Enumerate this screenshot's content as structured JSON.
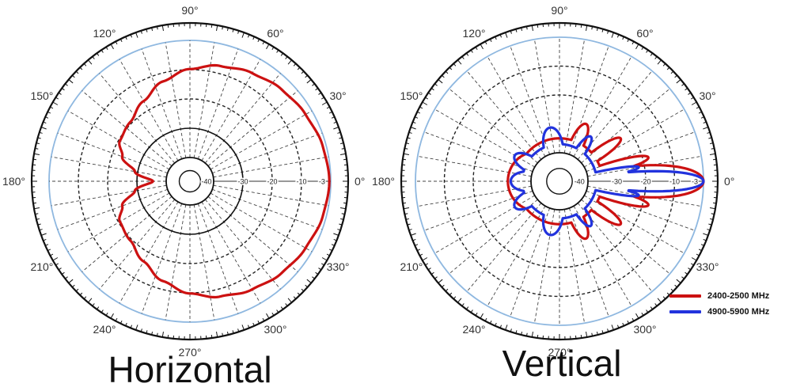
{
  "chart_data": [
    {
      "type": "polar-line",
      "title": "Horizontal",
      "angle_labels": [
        "0°",
        "30°",
        "60°",
        "90°",
        "120°",
        "150°",
        "180°",
        "210°",
        "240°",
        "270°",
        "300°",
        "330°"
      ],
      "radial_labels": [
        "-3",
        "-10",
        "-20",
        "-30",
        "-40"
      ],
      "series": [
        {
          "color": "#cc1111",
          "angles": [
            0,
            15,
            30,
            45,
            60,
            75,
            90,
            105,
            120,
            135,
            150,
            160,
            170,
            180,
            190,
            200,
            210,
            225,
            240,
            255,
            270,
            285,
            300,
            315,
            330,
            345,
            360
          ],
          "values": [
            -0.5,
            -1.2,
            -2.5,
            -3.8,
            -5.5,
            -7.4,
            -9.8,
            -12.8,
            -16.5,
            -19.4,
            -20.5,
            -23.5,
            -29,
            -35.5,
            -29,
            -23.5,
            -20.5,
            -19.4,
            -16.5,
            -12.8,
            -9.8,
            -7.4,
            -5.5,
            -3.8,
            -2.5,
            -1.2,
            -0.5
          ]
        }
      ]
    },
    {
      "type": "polar-line",
      "title": "Vertical",
      "angle_labels": [
        "0°",
        "30°",
        "60°",
        "90°",
        "120°",
        "150°",
        "180°",
        "210°",
        "240°",
        "270°",
        "300°",
        "330°"
      ],
      "radial_labels": [
        "-3",
        "-10",
        "-20",
        "-30",
        "-40"
      ],
      "series": [
        {
          "name": "2400-2500 MHz",
          "color": "#cc1111",
          "lobes": [
            {
              "center": 0,
              "half_width": 14,
              "peak": 0
            },
            {
              "center": 15,
              "half_width": 6,
              "peak": -18
            },
            {
              "center": -15,
              "half_width": 6,
              "peak": -18
            },
            {
              "center": 35,
              "half_width": 7,
              "peak": -24
            },
            {
              "center": -35,
              "half_width": 7,
              "peak": -24
            },
            {
              "center": 65,
              "half_width": 9,
              "peak": -28
            },
            {
              "center": -65,
              "half_width": 9,
              "peak": -28
            },
            {
              "center": 180,
              "half_width": 40,
              "peak": -32
            }
          ],
          "floor": -35
        },
        {
          "name": "4900-5900 MHz",
          "color": "#2233dd",
          "lobes": [
            {
              "center": 0,
              "half_width": 9,
              "peak": 0
            },
            {
              "center": 10,
              "half_width": 4,
              "peak": -22
            },
            {
              "center": -10,
              "half_width": 4,
              "peak": -22
            },
            {
              "center": 55,
              "half_width": 8,
              "peak": -31
            },
            {
              "center": -55,
              "half_width": 8,
              "peak": -31
            },
            {
              "center": 100,
              "half_width": 15,
              "peak": -31
            },
            {
              "center": -100,
              "half_width": 15,
              "peak": -31
            },
            {
              "center": 150,
              "half_width": 12,
              "peak": -32
            },
            {
              "center": -150,
              "half_width": 12,
              "peak": -32
            },
            {
              "center": 180,
              "half_width": 15,
              "peak": -33
            }
          ],
          "floor": -37
        }
      ]
    }
  ],
  "colors": {
    "outer_circle": "#8fb8e0",
    "grid": "#444444"
  }
}
